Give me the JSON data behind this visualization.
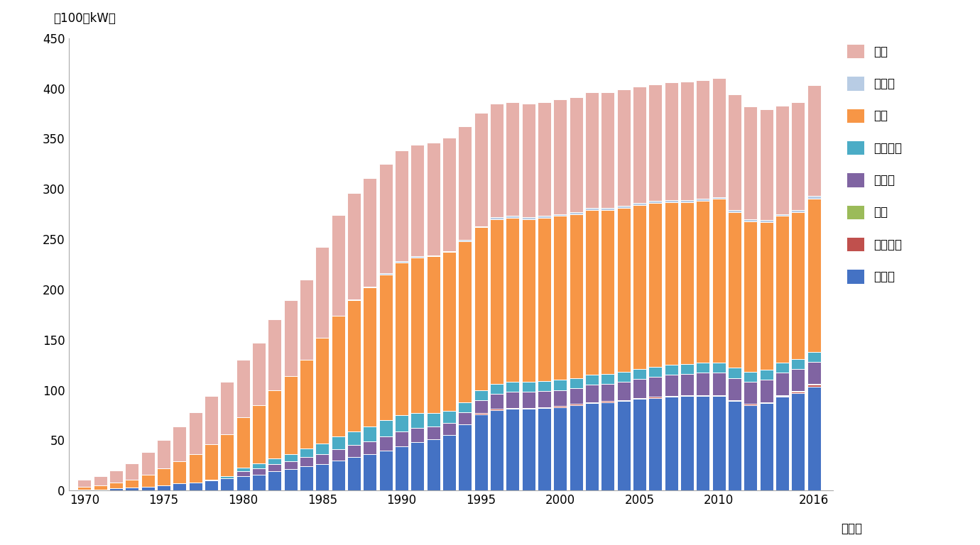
{
  "years": [
    1970,
    1971,
    1972,
    1973,
    1974,
    1975,
    1976,
    1977,
    1978,
    1979,
    1980,
    1981,
    1982,
    1983,
    1984,
    1985,
    1986,
    1987,
    1988,
    1989,
    1990,
    1991,
    1992,
    1993,
    1994,
    1995,
    1996,
    1997,
    1998,
    1999,
    2000,
    2001,
    2002,
    2003,
    2004,
    2005,
    2006,
    2007,
    2008,
    2009,
    2010,
    2011,
    2012,
    2013,
    2014,
    2015,
    2016
  ],
  "region_order": [
    "アジア",
    "アフリカ",
    "中東",
    "ロシア",
    "他旧ソ連",
    "欧州",
    "中南米",
    "北米"
  ],
  "colors": {
    "アジア": "#4472C4",
    "アフリカ": "#C0504D",
    "中東": "#9BBB59",
    "ロシア": "#8064A2",
    "他旧ソ連": "#4BACC6",
    "欧州": "#F79646",
    "中南米": "#B8CCE4",
    "北米": "#E6B0AA"
  },
  "data": {
    "アジア": [
      1,
      1,
      2,
      3,
      4,
      5,
      7,
      8,
      10,
      12,
      14,
      16,
      19,
      21,
      24,
      26,
      30,
      33,
      36,
      40,
      44,
      48,
      51,
      55,
      66,
      76,
      80,
      81,
      81,
      82,
      83,
      85,
      87,
      88,
      89,
      91,
      92,
      93,
      94,
      94,
      94,
      89,
      85,
      87,
      93,
      97,
      103
    ],
    "アフリカ": [
      0,
      0,
      0,
      0,
      0,
      0,
      0,
      0,
      0,
      0,
      0,
      0,
      0,
      0,
      0,
      0,
      0,
      0,
      0,
      0,
      0,
      0,
      0,
      0,
      0,
      1,
      1,
      1,
      1,
      1,
      1,
      1,
      1,
      1,
      1,
      1,
      1,
      1,
      1,
      1,
      1,
      1,
      1,
      1,
      1,
      1,
      2
    ],
    "中東": [
      0,
      0,
      0,
      0,
      0,
      0,
      0,
      0,
      0,
      0,
      0,
      0,
      0,
      0,
      0,
      0,
      0,
      0,
      0,
      0,
      0,
      0,
      0,
      0,
      0,
      0,
      0,
      0,
      0,
      0,
      0,
      0,
      0,
      0,
      0,
      0,
      0,
      0,
      0,
      0,
      0,
      0,
      0,
      0,
      1,
      1,
      1
    ],
    "ロシア": [
      0,
      0,
      0,
      0,
      0,
      0,
      0,
      0,
      0,
      0,
      5,
      6,
      7,
      8,
      9,
      10,
      11,
      12,
      13,
      14,
      15,
      14,
      13,
      12,
      12,
      13,
      15,
      16,
      16,
      16,
      16,
      16,
      17,
      17,
      18,
      19,
      20,
      21,
      21,
      22,
      22,
      22,
      22,
      22,
      22,
      22,
      22
    ],
    "他旧ソ連": [
      0,
      0,
      0,
      0,
      0,
      0,
      0,
      0,
      1,
      2,
      4,
      5,
      6,
      7,
      9,
      11,
      13,
      14,
      15,
      16,
      16,
      15,
      13,
      12,
      10,
      10,
      10,
      10,
      10,
      10,
      10,
      10,
      10,
      10,
      10,
      10,
      10,
      10,
      10,
      10,
      10,
      10,
      10,
      10,
      10,
      10,
      10
    ],
    "欧州": [
      3,
      4,
      6,
      8,
      12,
      17,
      22,
      28,
      35,
      42,
      50,
      58,
      68,
      78,
      88,
      105,
      120,
      130,
      138,
      145,
      152,
      155,
      156,
      158,
      160,
      162,
      164,
      163,
      162,
      162,
      163,
      163,
      164,
      163,
      163,
      163,
      163,
      162,
      161,
      161,
      163,
      155,
      150,
      147,
      146,
      146,
      152
    ],
    "中南米": [
      0,
      0,
      0,
      0,
      0,
      0,
      0,
      0,
      0,
      0,
      0,
      0,
      0,
      0,
      0,
      0,
      0,
      1,
      1,
      1,
      1,
      1,
      1,
      1,
      1,
      1,
      2,
      2,
      2,
      2,
      2,
      2,
      2,
      2,
      2,
      2,
      2,
      2,
      2,
      2,
      2,
      2,
      2,
      2,
      2,
      2,
      3
    ],
    "北米": [
      7,
      9,
      12,
      16,
      22,
      28,
      35,
      42,
      48,
      52,
      57,
      62,
      70,
      75,
      80,
      90,
      100,
      106,
      108,
      109,
      110,
      111,
      112,
      113,
      113,
      113,
      113,
      113,
      113,
      113,
      114,
      114,
      115,
      115,
      116,
      116,
      116,
      117,
      118,
      118,
      118,
      115,
      112,
      110,
      108,
      107,
      110
    ]
  },
  "ylabel": "（100万kW）",
  "xlabel": "（年）",
  "ylim": [
    0,
    450
  ],
  "yticks": [
    0,
    50,
    100,
    150,
    200,
    250,
    300,
    350,
    400,
    450
  ],
  "xticks": [
    1970,
    1975,
    1980,
    1985,
    1990,
    1995,
    2000,
    2005,
    2010,
    2016
  ],
  "bar_width": 0.85,
  "legend_fontsize": 12,
  "tick_fontsize": 12,
  "label_fontsize": 12
}
